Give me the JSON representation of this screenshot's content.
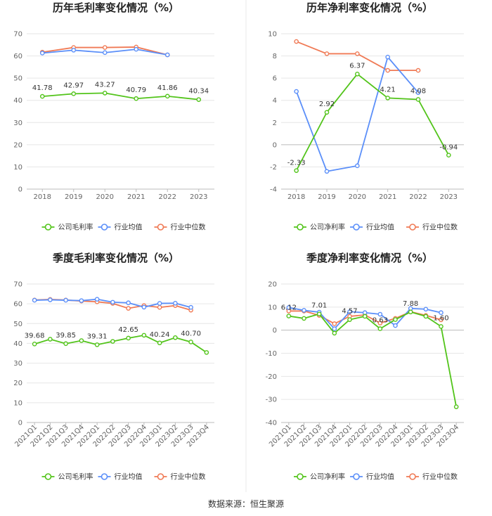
{
  "source": "数据来源：恒生聚源",
  "colors": {
    "company": "#52c41a",
    "average": "#5b8ff9",
    "median": "#f07a55"
  },
  "chart_data": [
    {
      "type": "line",
      "title": "历年毛利率变化情况（%）",
      "categories": [
        "2018",
        "2019",
        "2020",
        "2021",
        "2022",
        "2023"
      ],
      "ylim": [
        0,
        70
      ],
      "yticks": [
        0,
        10,
        20,
        30,
        40,
        50,
        60,
        70
      ],
      "series": [
        {
          "name": "公司毛利率",
          "values": [
            41.78,
            42.97,
            43.27,
            40.79,
            41.86,
            40.34
          ],
          "labels": [
            "41.78",
            "42.97",
            "43.27",
            "40.79",
            "41.86",
            "40.34"
          ]
        },
        {
          "name": "行业均值",
          "values": [
            61.3,
            62.6,
            61.5,
            63.0,
            60.5,
            null
          ]
        },
        {
          "name": "行业中位数",
          "values": [
            61.7,
            63.8,
            63.8,
            64.0,
            60.5,
            null
          ]
        }
      ]
    },
    {
      "type": "line",
      "title": "历年净利率变化情况（%）",
      "categories": [
        "2018",
        "2019",
        "2020",
        "2021",
        "2022",
        "2023"
      ],
      "ylim": [
        -4,
        10
      ],
      "yticks": [
        -4,
        -2,
        0,
        2,
        4,
        6,
        8,
        10
      ],
      "series": [
        {
          "name": "公司净利率",
          "values": [
            -2.33,
            2.92,
            6.37,
            4.21,
            4.08,
            -0.94
          ],
          "labels": [
            "-2.33",
            "2.92",
            "6.37",
            "4.21",
            "4.08",
            "-0.94"
          ]
        },
        {
          "name": "行业均值",
          "values": [
            4.8,
            -2.4,
            -1.9,
            7.9,
            4.7,
            null
          ]
        },
        {
          "name": "行业中位数",
          "values": [
            9.3,
            8.2,
            8.2,
            6.7,
            6.7,
            null
          ]
        }
      ]
    },
    {
      "type": "line",
      "title": "季度毛利率变化情况（%）",
      "categories": [
        "2021Q1",
        "2021Q2",
        "2021Q3",
        "2021Q4",
        "2022Q1",
        "2022Q2",
        "2022Q3",
        "2022Q4",
        "2023Q1",
        "2023Q2",
        "2023Q3",
        "2023Q4"
      ],
      "ylim": [
        0,
        70
      ],
      "yticks": [
        0,
        10,
        20,
        30,
        40,
        50,
        60,
        70
      ],
      "series": [
        {
          "name": "公司毛利率",
          "values": [
            39.68,
            42.1,
            39.85,
            41.4,
            39.31,
            41.0,
            42.65,
            44.1,
            40.24,
            42.9,
            40.7,
            35.4
          ],
          "labels": [
            "39.68",
            "",
            "39.85",
            "",
            "39.31",
            "",
            "42.65",
            "",
            "40.24",
            "",
            "40.70",
            ""
          ]
        },
        {
          "name": "行业均值",
          "values": [
            61.8,
            62.0,
            61.8,
            61.6,
            62.3,
            60.8,
            60.5,
            58.3,
            60.2,
            60.3,
            58.2,
            null
          ]
        },
        {
          "name": "行业中位数",
          "values": [
            61.9,
            62.2,
            61.9,
            61.4,
            61.0,
            60.2,
            57.7,
            59.1,
            58.2,
            59.1,
            56.8,
            null
          ]
        }
      ]
    },
    {
      "type": "line",
      "title": "季度净利率变化情况（%）",
      "categories": [
        "2021Q1",
        "2021Q2",
        "2021Q3",
        "2021Q4",
        "2022Q1",
        "2022Q2",
        "2022Q3",
        "2022Q4",
        "2023Q1",
        "2023Q2",
        "2023Q3",
        "2023Q4"
      ],
      "ylim": [
        -40,
        20
      ],
      "yticks": [
        -40,
        -30,
        -20,
        -10,
        0,
        10,
        20
      ],
      "series": [
        {
          "name": "公司净利率",
          "values": [
            6.12,
            5.1,
            7.01,
            -1.3,
            4.57,
            6.0,
            0.63,
            4.6,
            7.88,
            6.0,
            1.6,
            -33.2
          ],
          "labels": [
            "6.12",
            "",
            "7.01",
            "",
            "4.57",
            "",
            "0.63",
            "",
            "7.88",
            "",
            "1.60",
            ""
          ]
        },
        {
          "name": "行业均值",
          "values": [
            9.8,
            8.6,
            7.8,
            0.6,
            8.0,
            7.6,
            6.9,
            2.0,
            9.4,
            9.1,
            7.6,
            null
          ]
        },
        {
          "name": "行业中位数",
          "values": [
            8.3,
            8.3,
            6.4,
            2.8,
            6.0,
            6.6,
            3.1,
            5.1,
            8.0,
            6.4,
            4.5,
            null
          ]
        }
      ]
    }
  ]
}
